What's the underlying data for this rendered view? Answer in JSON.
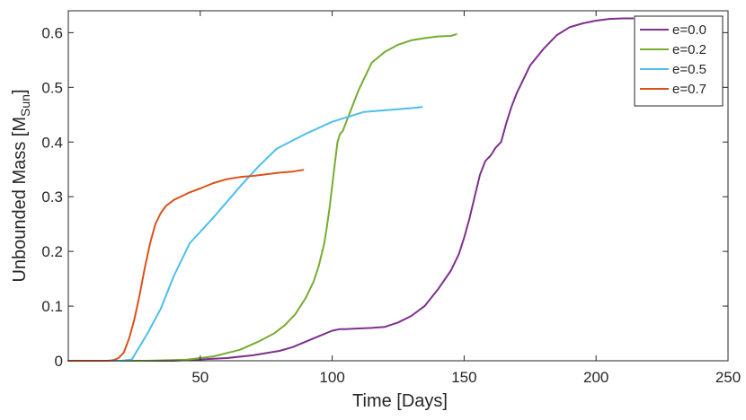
{
  "chart_data": {
    "type": "line",
    "xlabel": "Time [Days]",
    "ylabel": {
      "main": "Unbounded Mass [M",
      "sub": "Sun",
      "close": "]"
    },
    "xlim": [
      0,
      250
    ],
    "ylim": [
      0,
      0.64
    ],
    "xticks": [
      50,
      100,
      150,
      200,
      250
    ],
    "xtick_labels": [
      "50",
      "100",
      "150",
      "200",
      "250"
    ],
    "yticks": [
      0,
      0.1,
      0.2,
      0.3,
      0.4,
      0.5,
      0.6
    ],
    "ytick_labels": [
      "0",
      "0.1",
      "0.2",
      "0.3",
      "0.4",
      "0.5",
      "0.6"
    ],
    "grid": false,
    "legend_position": "top-right",
    "series": [
      {
        "name": "e=0.0",
        "color": "#7E2F8E",
        "x": [
          0,
          40,
          60,
          70,
          80,
          85,
          90,
          95,
          100,
          103,
          105,
          110,
          115,
          120,
          125,
          130,
          135,
          140,
          145,
          148,
          150,
          152,
          154,
          156,
          158,
          159,
          160,
          162,
          164,
          166,
          168,
          170,
          175,
          180,
          185,
          190,
          195,
          200,
          205,
          210,
          214
        ],
        "y": [
          0,
          0,
          0.005,
          0.01,
          0.018,
          0.025,
          0.035,
          0.045,
          0.055,
          0.058,
          0.058,
          0.059,
          0.06,
          0.062,
          0.07,
          0.082,
          0.1,
          0.13,
          0.165,
          0.195,
          0.225,
          0.26,
          0.3,
          0.34,
          0.365,
          0.37,
          0.375,
          0.39,
          0.4,
          0.435,
          0.465,
          0.49,
          0.54,
          0.57,
          0.595,
          0.61,
          0.617,
          0.622,
          0.625,
          0.626,
          0.626
        ]
      },
      {
        "name": "e=0.2",
        "color": "#77AC30",
        "x": [
          0,
          30,
          45,
          55,
          65,
          72,
          78,
          82,
          86,
          90,
          93,
          95,
          97,
          98,
          99,
          100,
          101,
          102,
          103,
          104,
          106,
          108,
          110,
          112,
          115,
          120,
          125,
          130,
          135,
          140,
          145,
          147
        ],
        "y": [
          0,
          0,
          0.002,
          0.008,
          0.02,
          0.035,
          0.05,
          0.065,
          0.085,
          0.115,
          0.145,
          0.175,
          0.215,
          0.245,
          0.28,
          0.32,
          0.36,
          0.4,
          0.415,
          0.42,
          0.445,
          0.47,
          0.495,
          0.515,
          0.545,
          0.565,
          0.578,
          0.586,
          0.59,
          0.593,
          0.594,
          0.597
        ]
      },
      {
        "name": "e=0.5",
        "color": "#4DBEEE",
        "x": [
          0,
          20,
          24,
          30,
          35,
          40,
          46,
          55,
          65,
          72,
          79,
          90,
          100,
          110,
          112,
          120,
          130,
          134
        ],
        "y": [
          0,
          0,
          0.002,
          0.05,
          0.095,
          0.155,
          0.215,
          0.262,
          0.318,
          0.355,
          0.388,
          0.415,
          0.437,
          0.452,
          0.455,
          0.458,
          0.462,
          0.464
        ]
      },
      {
        "name": "e=0.7",
        "color": "#D95319",
        "x": [
          0,
          15,
          17,
          19,
          21,
          23,
          25,
          27,
          29,
          31,
          33,
          35,
          37,
          40,
          43,
          46,
          50,
          55,
          60,
          65,
          70,
          75,
          80,
          85,
          89
        ],
        "y": [
          0,
          0,
          0.001,
          0.005,
          0.015,
          0.04,
          0.075,
          0.12,
          0.17,
          0.215,
          0.25,
          0.27,
          0.283,
          0.294,
          0.301,
          0.308,
          0.315,
          0.325,
          0.332,
          0.336,
          0.338,
          0.341,
          0.344,
          0.346,
          0.349
        ]
      }
    ]
  }
}
